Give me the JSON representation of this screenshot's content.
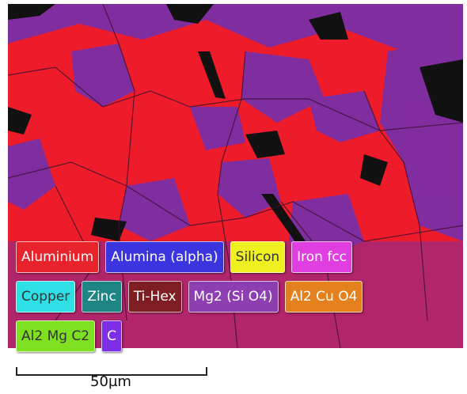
{
  "legend": [
    [
      {
        "label": "Aluminium",
        "color": "#e8232b"
      },
      {
        "label": "Alumina (alpha)",
        "color": "#3b35e0"
      },
      {
        "label": "Silicon",
        "color": "#eef020"
      },
      {
        "label": "Iron fcc",
        "color": "#e03ee0"
      }
    ],
    [
      {
        "label": "Copper",
        "color": "#2ee0e6"
      },
      {
        "label": "Zinc",
        "color": "#1f8584"
      },
      {
        "label": "Ti-Hex",
        "color": "#7e1e22"
      },
      {
        "label": "Mg2 (Si O4)",
        "color": "#8d3eb0"
      },
      {
        "label": "Al2 Cu O4",
        "color": "#e5801e"
      }
    ],
    [
      {
        "label": "Al2 Mg C2",
        "color": "#7ee020"
      },
      {
        "label": "C",
        "color": "#7d2ee6"
      }
    ]
  ],
  "scale_bar": "50µm"
}
